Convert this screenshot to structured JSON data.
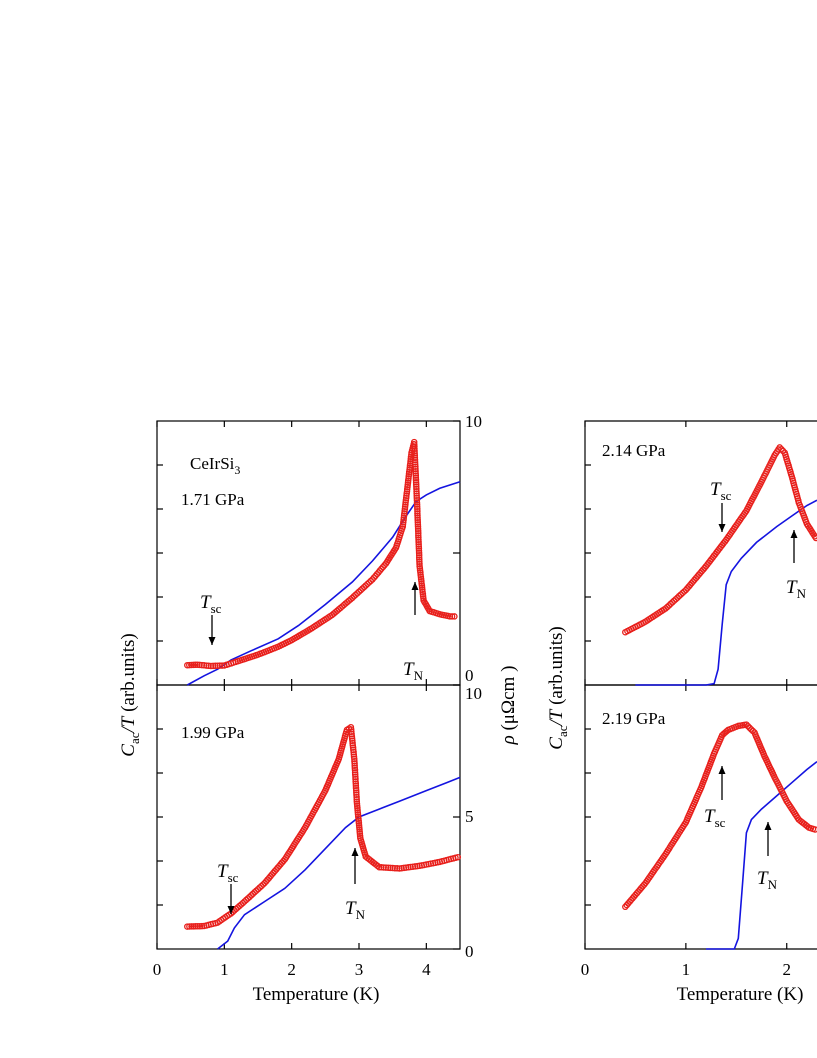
{
  "chart_data": {
    "type": "line",
    "colors": {
      "specific_heat": "#e8201c",
      "resistivity": "#1414e0"
    },
    "x_axis": {
      "label_main": "Temperature (K)",
      "left_ticks": [
        "0",
        "1",
        "2",
        "3",
        "4"
      ],
      "right_ticks": [
        "0",
        "1",
        "2"
      ]
    },
    "y_left_label": {
      "main": "C",
      "sub": "ac",
      "tail": "/T",
      "units": "(arb.units)"
    },
    "y_right_label": {
      "rho": "ρ",
      "units": "(μΩcm )"
    },
    "right_ticks": {
      "top": [
        "10",
        "0"
      ],
      "bottom": [
        "10",
        "5",
        "0"
      ]
    },
    "compound": {
      "prefix": "CeIrSi",
      "sub": "3"
    },
    "annotations": {
      "tsc": {
        "main": "T",
        "sub": "sc"
      },
      "tn": {
        "main": "T",
        "sub": "N"
      }
    },
    "panels": [
      {
        "id": "p171",
        "pressure": "1.71 GPa",
        "xlim": [
          0,
          4.5
        ],
        "ylim_rho": [
          0,
          10
        ],
        "c_points": [
          [
            0.45,
            0.75
          ],
          [
            0.6,
            0.77
          ],
          [
            0.8,
            0.72
          ],
          [
            1.0,
            0.74
          ],
          [
            1.2,
            0.9
          ],
          [
            1.5,
            1.15
          ],
          [
            1.8,
            1.45
          ],
          [
            2.0,
            1.7
          ],
          [
            2.3,
            2.15
          ],
          [
            2.6,
            2.65
          ],
          [
            2.9,
            3.3
          ],
          [
            3.2,
            4.0
          ],
          [
            3.4,
            4.6
          ],
          [
            3.55,
            5.2
          ],
          [
            3.65,
            6.0
          ],
          [
            3.72,
            7.5
          ],
          [
            3.78,
            8.8
          ],
          [
            3.82,
            9.2
          ],
          [
            3.86,
            7.0
          ],
          [
            3.9,
            4.5
          ],
          [
            3.96,
            3.2
          ],
          [
            4.05,
            2.8
          ],
          [
            4.2,
            2.68
          ],
          [
            4.35,
            2.6
          ],
          [
            4.45,
            2.6
          ]
        ],
        "rho_points": [
          [
            0.45,
            0
          ],
          [
            0.7,
            0.35
          ],
          [
            0.9,
            0.6
          ],
          [
            1.1,
            0.95
          ],
          [
            1.4,
            1.3
          ],
          [
            1.8,
            1.75
          ],
          [
            2.1,
            2.25
          ],
          [
            2.5,
            3.05
          ],
          [
            2.9,
            3.9
          ],
          [
            3.2,
            4.7
          ],
          [
            3.5,
            5.6
          ],
          [
            3.7,
            6.4
          ],
          [
            3.85,
            6.95
          ],
          [
            4.0,
            7.2
          ],
          [
            4.2,
            7.45
          ],
          [
            4.5,
            7.7
          ]
        ]
      },
      {
        "id": "p199",
        "pressure": "1.99 GPa",
        "xlim": [
          0,
          4.5
        ],
        "ylim_rho": [
          0,
          10
        ],
        "c_points": [
          [
            0.45,
            0.85
          ],
          [
            0.7,
            0.87
          ],
          [
            0.9,
            1.0
          ],
          [
            1.1,
            1.35
          ],
          [
            1.3,
            1.8
          ],
          [
            1.6,
            2.5
          ],
          [
            1.9,
            3.4
          ],
          [
            2.2,
            4.6
          ],
          [
            2.5,
            6.0
          ],
          [
            2.7,
            7.2
          ],
          [
            2.82,
            8.3
          ],
          [
            2.88,
            8.4
          ],
          [
            2.93,
            7.2
          ],
          [
            2.97,
            5.5
          ],
          [
            3.02,
            4.2
          ],
          [
            3.1,
            3.5
          ],
          [
            3.3,
            3.1
          ],
          [
            3.6,
            3.05
          ],
          [
            3.9,
            3.15
          ],
          [
            4.2,
            3.3
          ],
          [
            4.5,
            3.5
          ]
        ],
        "rho_points": [
          [
            0.9,
            0
          ],
          [
            1.05,
            0.3
          ],
          [
            1.15,
            0.8
          ],
          [
            1.3,
            1.3
          ],
          [
            1.6,
            1.8
          ],
          [
            1.9,
            2.3
          ],
          [
            2.2,
            3.0
          ],
          [
            2.5,
            3.8
          ],
          [
            2.8,
            4.6
          ],
          [
            3.0,
            5.0
          ],
          [
            3.3,
            5.3
          ],
          [
            3.6,
            5.6
          ],
          [
            4.0,
            6.0
          ],
          [
            4.3,
            6.3
          ],
          [
            4.5,
            6.5
          ]
        ]
      },
      {
        "id": "p214",
        "pressure": "2.14 GPa",
        "xlim": [
          0,
          2.3
        ],
        "c_points": [
          [
            0.4,
            2.0
          ],
          [
            0.6,
            2.4
          ],
          [
            0.8,
            2.9
          ],
          [
            1.0,
            3.6
          ],
          [
            1.2,
            4.5
          ],
          [
            1.4,
            5.5
          ],
          [
            1.6,
            6.6
          ],
          [
            1.75,
            7.7
          ],
          [
            1.88,
            8.7
          ],
          [
            1.93,
            9.0
          ],
          [
            1.98,
            8.8
          ],
          [
            2.05,
            7.9
          ],
          [
            2.12,
            6.9
          ],
          [
            2.2,
            6.1
          ],
          [
            2.3,
            5.5
          ]
        ],
        "rho_points": [
          [
            0.5,
            0
          ],
          [
            1.2,
            0
          ],
          [
            1.28,
            0.05
          ],
          [
            1.32,
            0.6
          ],
          [
            1.36,
            2.3
          ],
          [
            1.4,
            3.8
          ],
          [
            1.45,
            4.3
          ],
          [
            1.55,
            4.8
          ],
          [
            1.7,
            5.4
          ],
          [
            1.9,
            6.0
          ],
          [
            2.05,
            6.4
          ],
          [
            2.2,
            6.8
          ],
          [
            2.3,
            7.0
          ]
        ]
      },
      {
        "id": "p219",
        "pressure": "2.19 GPa",
        "xlim": [
          0,
          2.3
        ],
        "c_points": [
          [
            0.4,
            1.6
          ],
          [
            0.6,
            2.5
          ],
          [
            0.8,
            3.6
          ],
          [
            1.0,
            4.8
          ],
          [
            1.15,
            6.1
          ],
          [
            1.28,
            7.4
          ],
          [
            1.36,
            8.1
          ],
          [
            1.42,
            8.3
          ],
          [
            1.52,
            8.45
          ],
          [
            1.6,
            8.5
          ],
          [
            1.68,
            8.2
          ],
          [
            1.78,
            7.3
          ],
          [
            1.88,
            6.5
          ],
          [
            2.0,
            5.6
          ],
          [
            2.12,
            4.9
          ],
          [
            2.22,
            4.6
          ],
          [
            2.3,
            4.5
          ]
        ],
        "rho_points": [
          [
            1.2,
            0
          ],
          [
            1.48,
            0
          ],
          [
            1.52,
            0.4
          ],
          [
            1.56,
            2.4
          ],
          [
            1.6,
            4.4
          ],
          [
            1.65,
            4.9
          ],
          [
            1.75,
            5.3
          ],
          [
            1.9,
            5.8
          ],
          [
            2.05,
            6.3
          ],
          [
            2.2,
            6.8
          ],
          [
            2.3,
            7.1
          ]
        ]
      }
    ]
  }
}
